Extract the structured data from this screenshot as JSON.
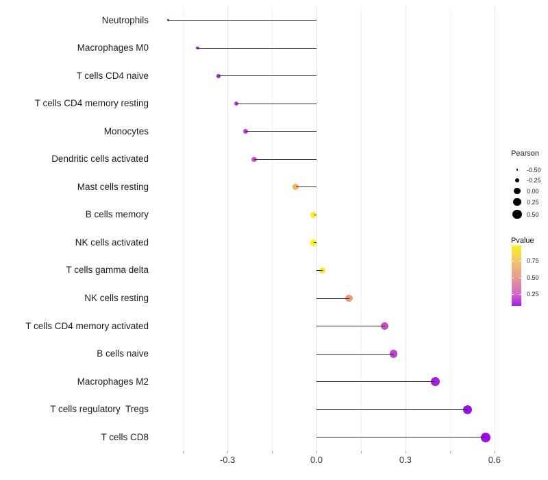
{
  "chart_data": {
    "type": "lollipop",
    "orientation": "horizontal",
    "title": "",
    "xlabel": "",
    "ylabel": "",
    "xlim": [
      -0.54,
      0.63
    ],
    "grid": "vertical major and minor light-grey gridlines on white background",
    "x_tick_labels": [
      "-0.3",
      "0.0",
      "0.3",
      "0.6"
    ],
    "x_tick_values": [
      -0.3,
      0.0,
      0.3,
      0.6
    ],
    "x_minor_tick_values": [
      -0.45,
      -0.15,
      0.15,
      0.45
    ],
    "items": [
      {
        "label": "Neutrophils",
        "pearson": -0.5,
        "pvalue_est": 0.06,
        "color": "#8e21db"
      },
      {
        "label": "Macrophages M0",
        "pearson": -0.4,
        "pvalue_est": 0.1,
        "color": "#9526de"
      },
      {
        "label": "T cells CD4 naive",
        "pearson": -0.33,
        "pvalue_est": 0.15,
        "color": "#9c2cda"
      },
      {
        "label": "T cells CD4 memory resting",
        "pearson": -0.27,
        "pvalue_est": 0.22,
        "color": "#b43cd3"
      },
      {
        "label": "Monocytes",
        "pearson": -0.24,
        "pvalue_est": 0.23,
        "color": "#b440d1"
      },
      {
        "label": "Dendritic cells activated",
        "pearson": -0.21,
        "pvalue_est": 0.28,
        "color": "#c455c8"
      },
      {
        "label": "Mast cells resting",
        "pearson": -0.07,
        "pvalue_est": 0.7,
        "color": "#f0b364"
      },
      {
        "label": "B cells memory",
        "pearson": -0.01,
        "pvalue_est": 0.93,
        "color": "#f6ee26"
      },
      {
        "label": "NK cells activated",
        "pearson": -0.01,
        "pvalue_est": 0.96,
        "color": "#f9f318"
      },
      {
        "label": "T cells gamma delta",
        "pearson": 0.02,
        "pvalue_est": 0.9,
        "color": "#f4e92e"
      },
      {
        "label": "NK cells resting",
        "pearson": 0.11,
        "pvalue_est": 0.52,
        "color": "#e99a78"
      },
      {
        "label": "T cells CD4 memory activated",
        "pearson": 0.23,
        "pvalue_est": 0.27,
        "color": "#c750c5"
      },
      {
        "label": "B cells naive",
        "pearson": 0.26,
        "pvalue_est": 0.24,
        "color": "#bc43cd"
      },
      {
        "label": "Macrophages M2",
        "pearson": 0.4,
        "pvalue_est": 0.1,
        "color": "#9d23de"
      },
      {
        "label": "T cells regulatory  Tregs",
        "pearson": 0.51,
        "pvalue_est": 0.05,
        "color": "#9913e4"
      },
      {
        "label": "T cells CD8",
        "pearson": 0.57,
        "pvalue_est": 0.04,
        "color": "#9d0ce6"
      }
    ],
    "legend_size": {
      "title": "Pearson",
      "entries": [
        "-0.50",
        "-0.25",
        "0.00",
        "0.25",
        "0.50"
      ],
      "values": [
        -0.5,
        -0.25,
        0.0,
        0.25,
        0.5
      ],
      "dot_color": "#000000",
      "position": "right"
    },
    "legend_color": {
      "title": "Pvalue",
      "tick_labels": [
        "0.75",
        "0.50",
        "0.25"
      ],
      "tick_positions_pct": [
        25,
        53,
        81
      ],
      "gradient_stops": [
        "#f8ef25",
        "#f3c76d",
        "#e59b8e",
        "#cf68c8",
        "#a21cec"
      ],
      "gradient_stop_pcts": [
        0,
        25,
        53,
        81,
        100
      ],
      "position": "right"
    },
    "colors": {
      "stem": "#2b2b2b",
      "grid_major": "#e3e3e3",
      "grid_minor": "#f2f2f2",
      "axis_text": "#383838",
      "background": "#ffffff"
    }
  }
}
